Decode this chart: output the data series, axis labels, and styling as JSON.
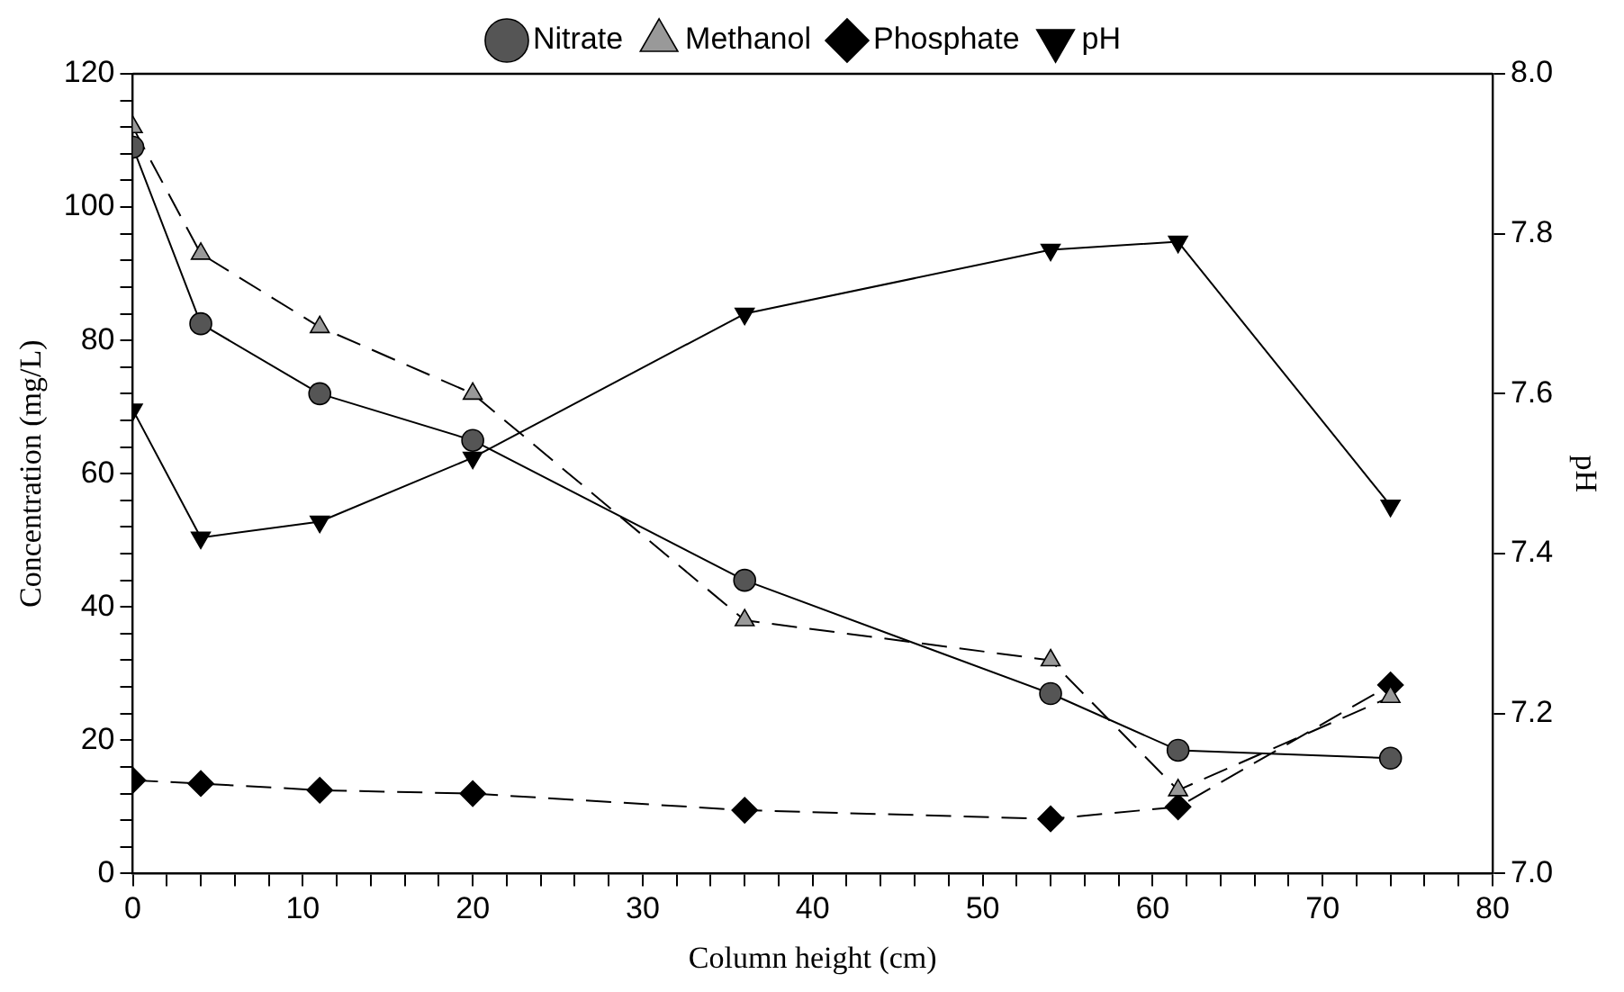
{
  "chart_data": {
    "type": "line",
    "xlabel": "Column height (cm)",
    "ylabel": "Concentration (mg/L)",
    "y2label": "pH",
    "x": [
      0,
      4,
      11,
      20,
      36,
      54,
      61.5,
      74
    ],
    "series": [
      {
        "name": "Nitrate",
        "color": "#555555",
        "marker": "circle",
        "line_style": "solid",
        "values": [
          109,
          82.5,
          72,
          65,
          44,
          27,
          18.5,
          17.3
        ]
      },
      {
        "name": "Methanol",
        "color": "#999999",
        "marker": "triangle",
        "line_style": "dashed",
        "values": [
          112,
          93,
          82,
          72,
          38,
          32,
          12.5,
          26.5
        ]
      },
      {
        "name": "Phosphate",
        "color": "#000000",
        "marker": "diamond",
        "line_style": "dashed",
        "values": [
          14,
          13.5,
          12.5,
          12,
          9.5,
          8.2,
          10,
          28.3
        ]
      },
      {
        "name": "pH",
        "color": "#000000",
        "marker": "triangle-down",
        "line_style": "solid",
        "axis": "y2",
        "values": [
          7.58,
          7.42,
          7.44,
          7.52,
          7.7,
          7.78,
          7.79,
          7.46
        ]
      }
    ],
    "xlim": [
      0,
      80
    ],
    "xticks": [
      0,
      {
        "value": 2,
        "label": null
      },
      {
        "value": 4,
        "label": null
      },
      {
        "value": 6,
        "label": null
      },
      {
        "value": 8,
        "label": null
      },
      10,
      {
        "value": 12,
        "label": null
      },
      {
        "value": 14,
        "label": null
      },
      {
        "value": 16,
        "label": null
      },
      {
        "value": 18,
        "label": null
      },
      20,
      {
        "value": 22,
        "label": null
      },
      {
        "value": 24,
        "label": null
      },
      {
        "value": 26,
        "label": null
      },
      {
        "value": 28,
        "label": null
      },
      30,
      {
        "value": 32,
        "label": null
      },
      {
        "value": 34,
        "label": null
      },
      {
        "value": 36,
        "label": null
      },
      {
        "value": 38,
        "label": null
      },
      40,
      {
        "value": 42,
        "label": null
      },
      {
        "value": 44,
        "label": null
      },
      {
        "value": 46,
        "label": null
      },
      {
        "value": 48,
        "label": null
      },
      50,
      {
        "value": 52,
        "label": null
      },
      {
        "value": 54,
        "label": null
      },
      {
        "value": 56,
        "label": null
      },
      {
        "value": 58,
        "label": null
      },
      60,
      {
        "value": 62,
        "label": null
      },
      {
        "value": 64,
        "label": null
      },
      {
        "value": 66,
        "label": null
      },
      {
        "value": 68,
        "label": null
      },
      70,
      {
        "value": 72,
        "label": null
      },
      {
        "value": 74,
        "label": null
      },
      {
        "value": 76,
        "label": null
      },
      {
        "value": 78,
        "label": null
      },
      80
    ],
    "ylim": [
      0,
      120
    ],
    "yticks": [
      0,
      {
        "value": 4,
        "label": null
      },
      {
        "value": 8,
        "label": null
      },
      {
        "value": 12,
        "label": null
      },
      {
        "value": 16,
        "label": null
      },
      20,
      {
        "value": 24,
        "label": null
      },
      {
        "value": 28,
        "label": null
      },
      {
        "value": 32,
        "label": null
      },
      {
        "value": 36,
        "label": null
      },
      40,
      {
        "value": 44,
        "label": null
      },
      {
        "value": 48,
        "label": null
      },
      {
        "value": 52,
        "label": null
      },
      {
        "value": 56,
        "label": null
      },
      60,
      {
        "value": 64,
        "label": null
      },
      {
        "value": 68,
        "label": null
      },
      {
        "value": 72,
        "label": null
      },
      {
        "value": 76,
        "label": null
      },
      80,
      {
        "value": 84,
        "label": null
      },
      {
        "value": 88,
        "label": null
      },
      {
        "value": 92,
        "label": null
      },
      {
        "value": 96,
        "label": null
      },
      100,
      {
        "value": 104,
        "label": null
      },
      {
        "value": 108,
        "label": null
      },
      {
        "value": 112,
        "label": null
      },
      {
        "value": 116,
        "label": null
      },
      120
    ],
    "y2lim": [
      7.0,
      8.0
    ],
    "y2ticks": [
      {
        "value": 7,
        "label": "7.0"
      },
      7.2,
      7.4,
      7.6,
      7.8,
      {
        "value": 8,
        "label": "8.0"
      }
    ],
    "grid": false,
    "legend": "top"
  }
}
